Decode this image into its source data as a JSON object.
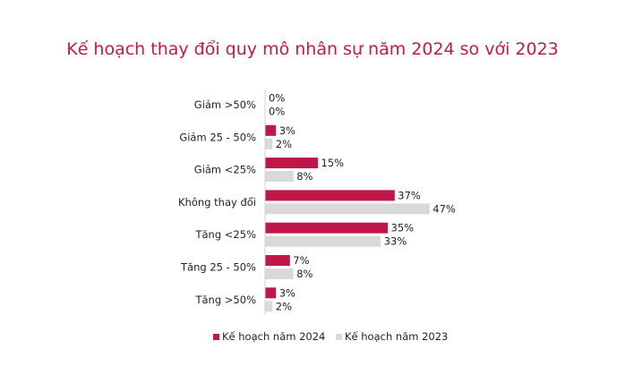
{
  "chart_data": {
    "type": "bar",
    "orientation": "horizontal",
    "title": "Kế hoạch thay đổi quy mô nhân sự năm 2024 so với 2023",
    "categories": [
      "Giảm >50%",
      "Giảm 25 - 50%",
      "Giảm <25%",
      "Không thay đổi",
      "Tăng <25%",
      "Tăng 25 - 50%",
      "Tăng >50%"
    ],
    "series": [
      {
        "name": "Kế hoạch năm 2024",
        "color": "#c0174a",
        "values": [
          0,
          3,
          15,
          37,
          35,
          7,
          3
        ],
        "labels": [
          "0%",
          "3%",
          "15%",
          "37%",
          "35%",
          "7%",
          "3%"
        ]
      },
      {
        "name": "Kế hoạch năm 2023",
        "color": "#d9d9d9",
        "values": [
          0,
          2,
          8,
          47,
          33,
          8,
          2
        ],
        "labels": [
          "0%",
          "2%",
          "8%",
          "47%",
          "33%",
          "8%",
          "2%"
        ]
      }
    ],
    "value_unit": "%",
    "xlim": [
      0,
      50
    ],
    "grid": false,
    "legend_position": "bottom"
  }
}
